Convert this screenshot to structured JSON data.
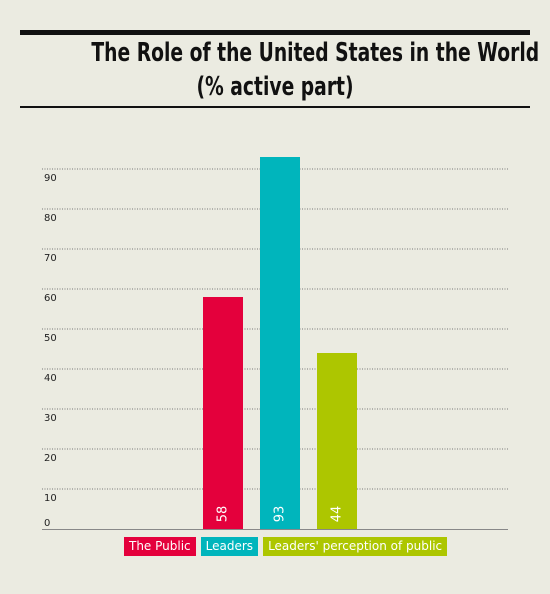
{
  "title_line1": "The Role of the United States in the World",
  "title_line2": "(% active part)",
  "chart_data": {
    "type": "bar",
    "title": "The Role of the United States in the World (% active part)",
    "categories": [
      "The Public",
      "Leaders",
      "Leaders' perception of public"
    ],
    "values": [
      58,
      93,
      44
    ],
    "colors": [
      "#e4003c",
      "#00b5bc",
      "#adc600"
    ],
    "yticks": [
      0,
      10,
      20,
      30,
      40,
      50,
      60,
      70,
      80,
      90
    ],
    "ylim": [
      0,
      95
    ],
    "grid": true,
    "legend_position": "bottom"
  }
}
